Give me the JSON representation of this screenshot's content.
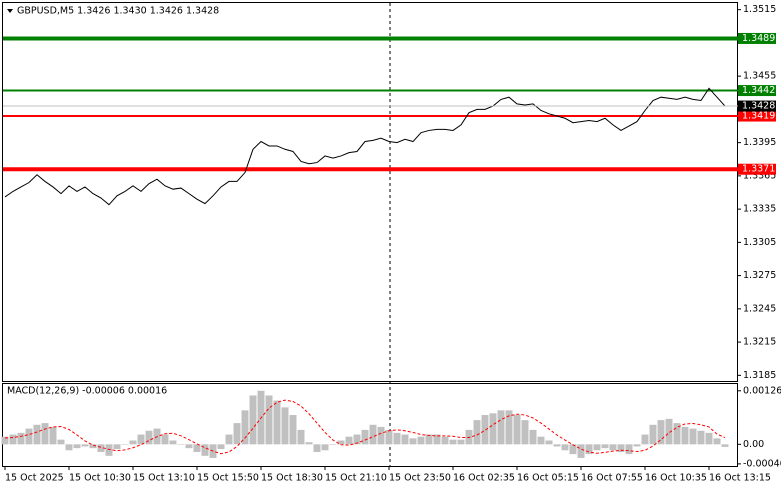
{
  "xaxis": {
    "labels": [
      "15 Oct 2025",
      "15 Oct 10:30",
      "15 Oct 13:10",
      "15 Oct 15:50",
      "15 Oct 18:30",
      "15 Oct 21:10",
      "15 Oct 23:50",
      "16 Oct 02:35",
      "16 Oct 05:15",
      "16 Oct 07:55",
      "16 Oct 10:35",
      "16 Oct 13:15"
    ]
  },
  "chart_data": [
    {
      "type": "line",
      "title": "GBPUSD,M5  1.3426 1.3430 1.3426 1.3428",
      "color": "#000000",
      "ylim": [
        1.3179,
        1.3521
      ],
      "yticks": [
        1.3515,
        1.3455,
        1.3395,
        1.3365,
        1.3335,
        1.3305,
        1.3275,
        1.3245,
        1.3215,
        1.3185
      ],
      "last_price": 1.3428,
      "levels": [
        {
          "value": 1.3489,
          "color": "#008000"
        },
        {
          "value": 1.3442,
          "color": "#008000"
        },
        {
          "value": 1.3419,
          "color": "#ff0000"
        },
        {
          "value": 1.3371,
          "color": "#ff0000"
        }
      ],
      "values": [
        1.3346,
        1.3351,
        1.3355,
        1.3359,
        1.3366,
        1.336,
        1.3355,
        1.3349,
        1.3356,
        1.3351,
        1.3355,
        1.3349,
        1.3345,
        1.3339,
        1.3347,
        1.3351,
        1.3356,
        1.3351,
        1.3358,
        1.3362,
        1.3356,
        1.3353,
        1.3354,
        1.3349,
        1.3344,
        1.334,
        1.3347,
        1.3355,
        1.336,
        1.336,
        1.3368,
        1.3389,
        1.3396,
        1.3392,
        1.3392,
        1.3389,
        1.3387,
        1.3378,
        1.3376,
        1.3377,
        1.3383,
        1.3381,
        1.3383,
        1.3386,
        1.3387,
        1.3396,
        1.3397,
        1.3399,
        1.3396,
        1.3395,
        1.3398,
        1.3396,
        1.3404,
        1.3406,
        1.3407,
        1.3407,
        1.3406,
        1.3411,
        1.3422,
        1.3425,
        1.3425,
        1.3428,
        1.3434,
        1.3436,
        1.343,
        1.3429,
        1.343,
        1.3424,
        1.3421,
        1.3419,
        1.3417,
        1.3413,
        1.3414,
        1.3415,
        1.3414,
        1.3417,
        1.3411,
        1.3406,
        1.341,
        1.3414,
        1.3424,
        1.3433,
        1.3436,
        1.3435,
        1.3434,
        1.3436,
        1.3434,
        1.3433,
        1.3444,
        1.3436,
        1.3428
      ]
    },
    {
      "type": "macd",
      "title": "MACD(12,26,9) -0.00006 0.00016",
      "ylim": [
        -0.00051,
        0.00142
      ],
      "yticks": [
        0.00126,
        {
          "value": 0,
          "label": "0.00"
        },
        -0.00046
      ],
      "series": [
        {
          "name": "MACD",
          "color": "#c0c0c0",
          "values": [
            0.00018,
            0.00023,
            0.00027,
            0.00037,
            0.00046,
            0.0005,
            0.00041,
            0.00011,
            -0.00014,
            -9e-05,
            -5e-05,
            -9e-05,
            -0.00018,
            -0.00027,
            -0.00011,
            0,
            9e-05,
            0.00023,
            0.00032,
            0.00037,
            0.00023,
            9e-05,
            0,
            -9e-05,
            -0.00018,
            -0.00027,
            -0.00032,
            -0.00011,
            0.00023,
            0.0005,
            0.0008,
            0.00115,
            0.00126,
            0.00115,
            0.00103,
            0.00087,
            0.00069,
            0.00034,
            5e-05,
            -0.00018,
            -0.00014,
            0,
            9e-05,
            0.00018,
            0.00023,
            0.00034,
            0.00046,
            0.00041,
            0.00034,
            0.00027,
            0.00023,
            0.00014,
            0.00018,
            0.00023,
            0.00023,
            0.00018,
            0.00011,
            0.00011,
            0.00034,
            0.00057,
            0.00069,
            0.00073,
            0.0008,
            0.0008,
            0.00069,
            0.00057,
            0.00034,
            0.00018,
            9e-05,
            -5e-05,
            -0.00014,
            -0.00023,
            -0.00032,
            -0.00023,
            -0.00014,
            -9e-05,
            -0.00014,
            -0.00018,
            -0.00023,
            -5e-05,
            0.00023,
            0.00046,
            0.00057,
            0.0006,
            0.0005,
            0.00041,
            0.00037,
            0.00032,
            0.00027,
            0.00014,
            -6e-05
          ]
        },
        {
          "name": "Signal",
          "color": "#ff0000",
          "values": [
            0.00015,
            0.00016,
            0.00019,
            0.00023,
            0.00029,
            0.00036,
            0.00041,
            0.00042,
            0.00035,
            0.00022,
            8e-05,
            -2e-05,
            -7e-05,
            -0.00012,
            -0.00015,
            -0.00013,
            -8e-05,
            -1e-05,
            9e-05,
            0.00018,
            0.00025,
            0.00026,
            0.0002,
            0.00011,
            1e-05,
            -8e-05,
            -0.00016,
            -0.00022,
            -0.00018,
            -5e-05,
            0.00015,
            0.00038,
            0.00062,
            0.00085,
            0.00099,
            0.00104,
            0.00101,
            0.0009,
            0.00072,
            0.0005,
            0.00028,
            0.0001,
            -1e-05,
            -2e-05,
            3e-05,
            0.0001,
            0.00018,
            0.00026,
            0.00032,
            0.00034,
            0.00032,
            0.00028,
            0.00023,
            0.00021,
            0.0002,
            0.0002,
            0.00019,
            0.00016,
            0.00016,
            0.00022,
            0.00033,
            0.00046,
            0.00058,
            0.00067,
            0.00071,
            0.00069,
            0.00062,
            0.0005,
            0.00036,
            0.00022,
            0.0001,
            -1e-05,
            -0.00011,
            -0.00018,
            -0.00021,
            -0.00019,
            -0.00016,
            -0.00014,
            -0.00015,
            -0.00017,
            -0.00014,
            -4e-05,
            0.00011,
            0.00027,
            0.0004,
            0.00048,
            0.00049,
            0.00046,
            0.00041,
            0.00024,
            0.00016
          ]
        }
      ]
    }
  ]
}
